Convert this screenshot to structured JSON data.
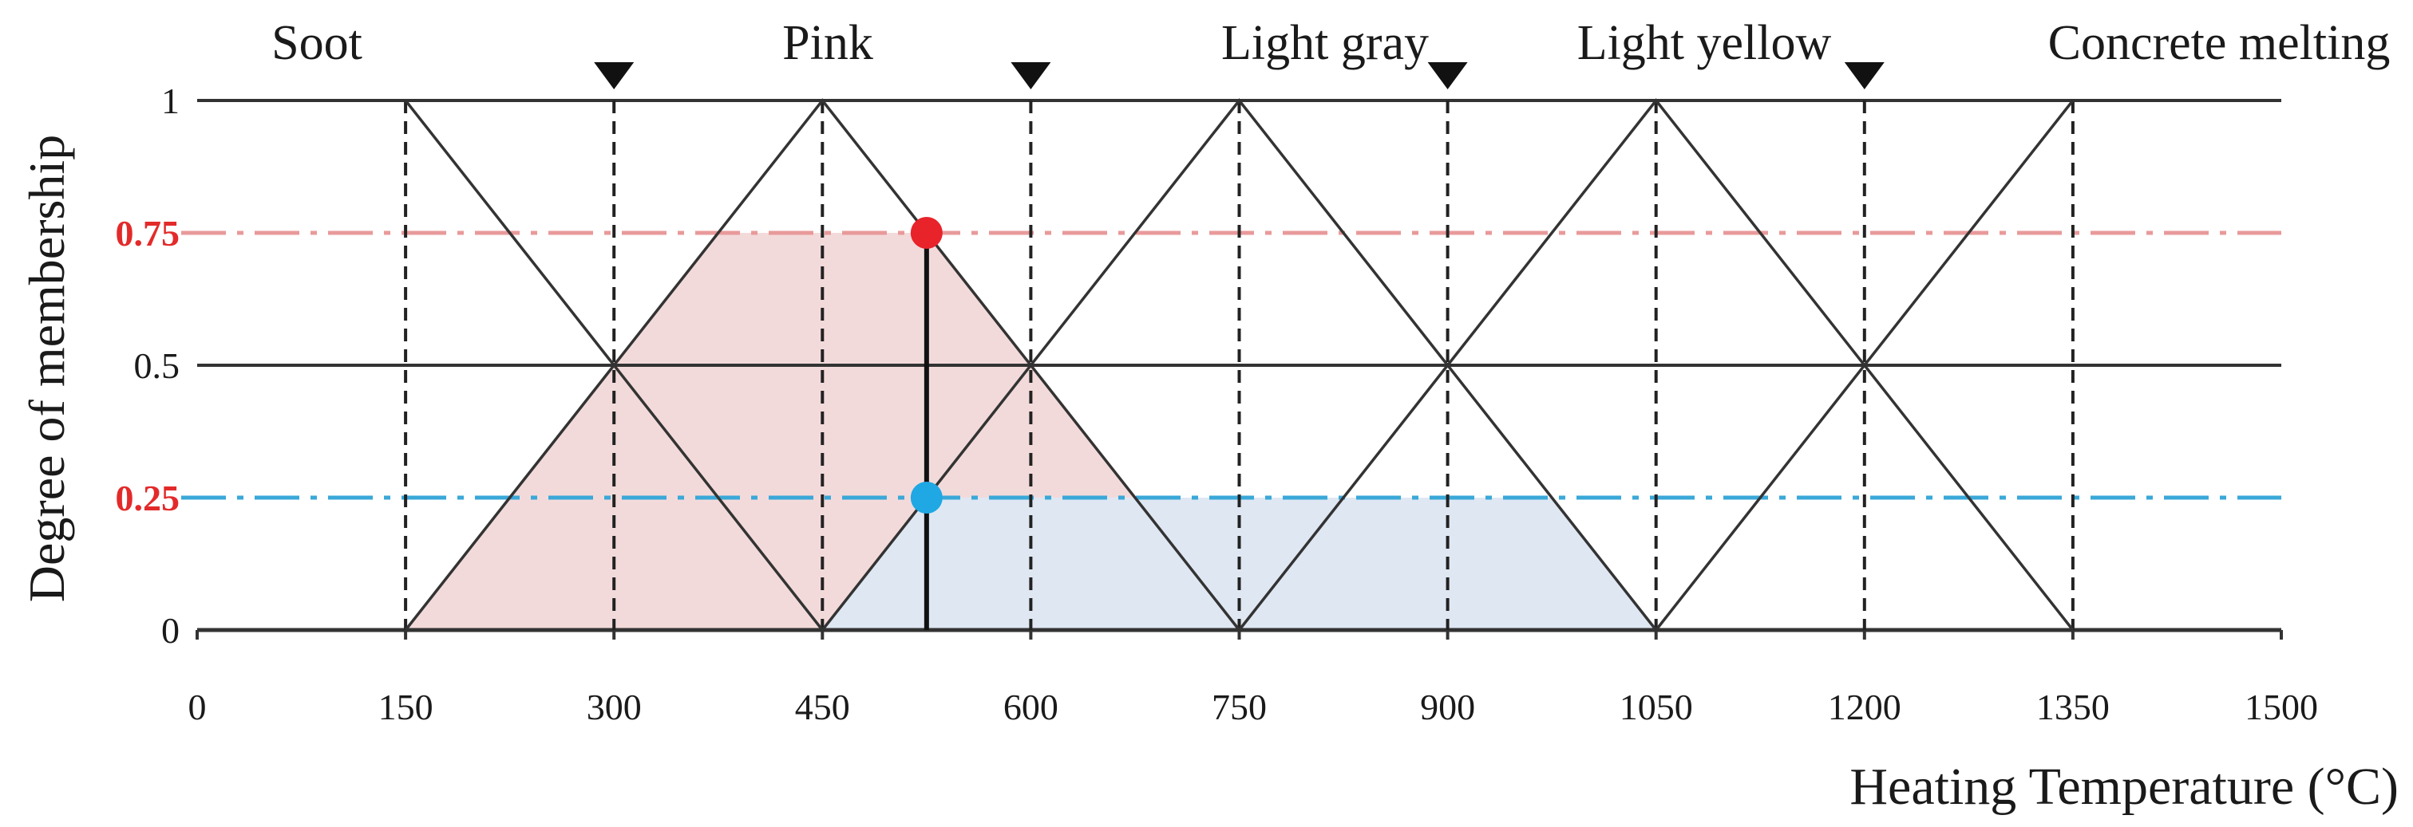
{
  "chart_data": {
    "type": "line",
    "xlabel": "Heating Temperature (°C)",
    "ylabel": "Degree of membership",
    "xlim": [
      0,
      1500
    ],
    "ylim": [
      0,
      1
    ],
    "x_ticks": [
      "0",
      "150",
      "300",
      "450",
      "600",
      "750",
      "900",
      "1050",
      "1200",
      "1350",
      "1500"
    ],
    "y_ticks": [
      {
        "value": 0,
        "label": "0",
        "color": "#1a1a1a"
      },
      {
        "value": 0.25,
        "label": "0.25",
        "color": "#e32a2a"
      },
      {
        "value": 0.5,
        "label": "0.5",
        "color": "#1a1a1a"
      },
      {
        "value": 0.75,
        "label": "0.75",
        "color": "#e32a2a"
      },
      {
        "value": 1,
        "label": "1",
        "color": "#1a1a1a"
      }
    ],
    "categories": [
      {
        "label": "Soot",
        "x": [
          0,
          150,
          450
        ],
        "y": [
          1,
          1,
          0
        ]
      },
      {
        "label": "Pink",
        "x": [
          150,
          450,
          750
        ],
        "y": [
          0,
          1,
          0
        ]
      },
      {
        "label": "Light gray",
        "x": [
          450,
          750,
          1050
        ],
        "y": [
          0,
          1,
          0
        ]
      },
      {
        "label": "Light yellow",
        "x": [
          750,
          1050,
          1350
        ],
        "y": [
          0,
          1,
          0
        ]
      },
      {
        "label": "Concrete melting",
        "x": [
          1050,
          1350,
          1500
        ],
        "y": [
          0,
          1,
          1
        ]
      }
    ],
    "boundary_markers": [
      300,
      600,
      900,
      1200
    ],
    "vertical_guides": [
      150,
      300,
      450,
      600,
      750,
      900,
      1050,
      1200,
      1350
    ],
    "horizontal_guides": [
      {
        "y": 0.75,
        "color": "#e89a9a"
      },
      {
        "y": 0.25,
        "color": "#3aa8d8"
      }
    ],
    "clipped_areas": [
      {
        "category": "Pink",
        "cut": 0.75,
        "color": "#f3dada"
      },
      {
        "category": "Light gray",
        "cut": 0.25,
        "color": "#dfe7f3"
      }
    ],
    "input_line": {
      "x": 525,
      "y_top": 0.75,
      "y_bottom": 0
    },
    "points": [
      {
        "x": 525,
        "y": 0.75,
        "color": "#e8232a"
      },
      {
        "x": 525,
        "y": 0.25,
        "color": "#1fa8e3"
      }
    ],
    "grid": false
  }
}
